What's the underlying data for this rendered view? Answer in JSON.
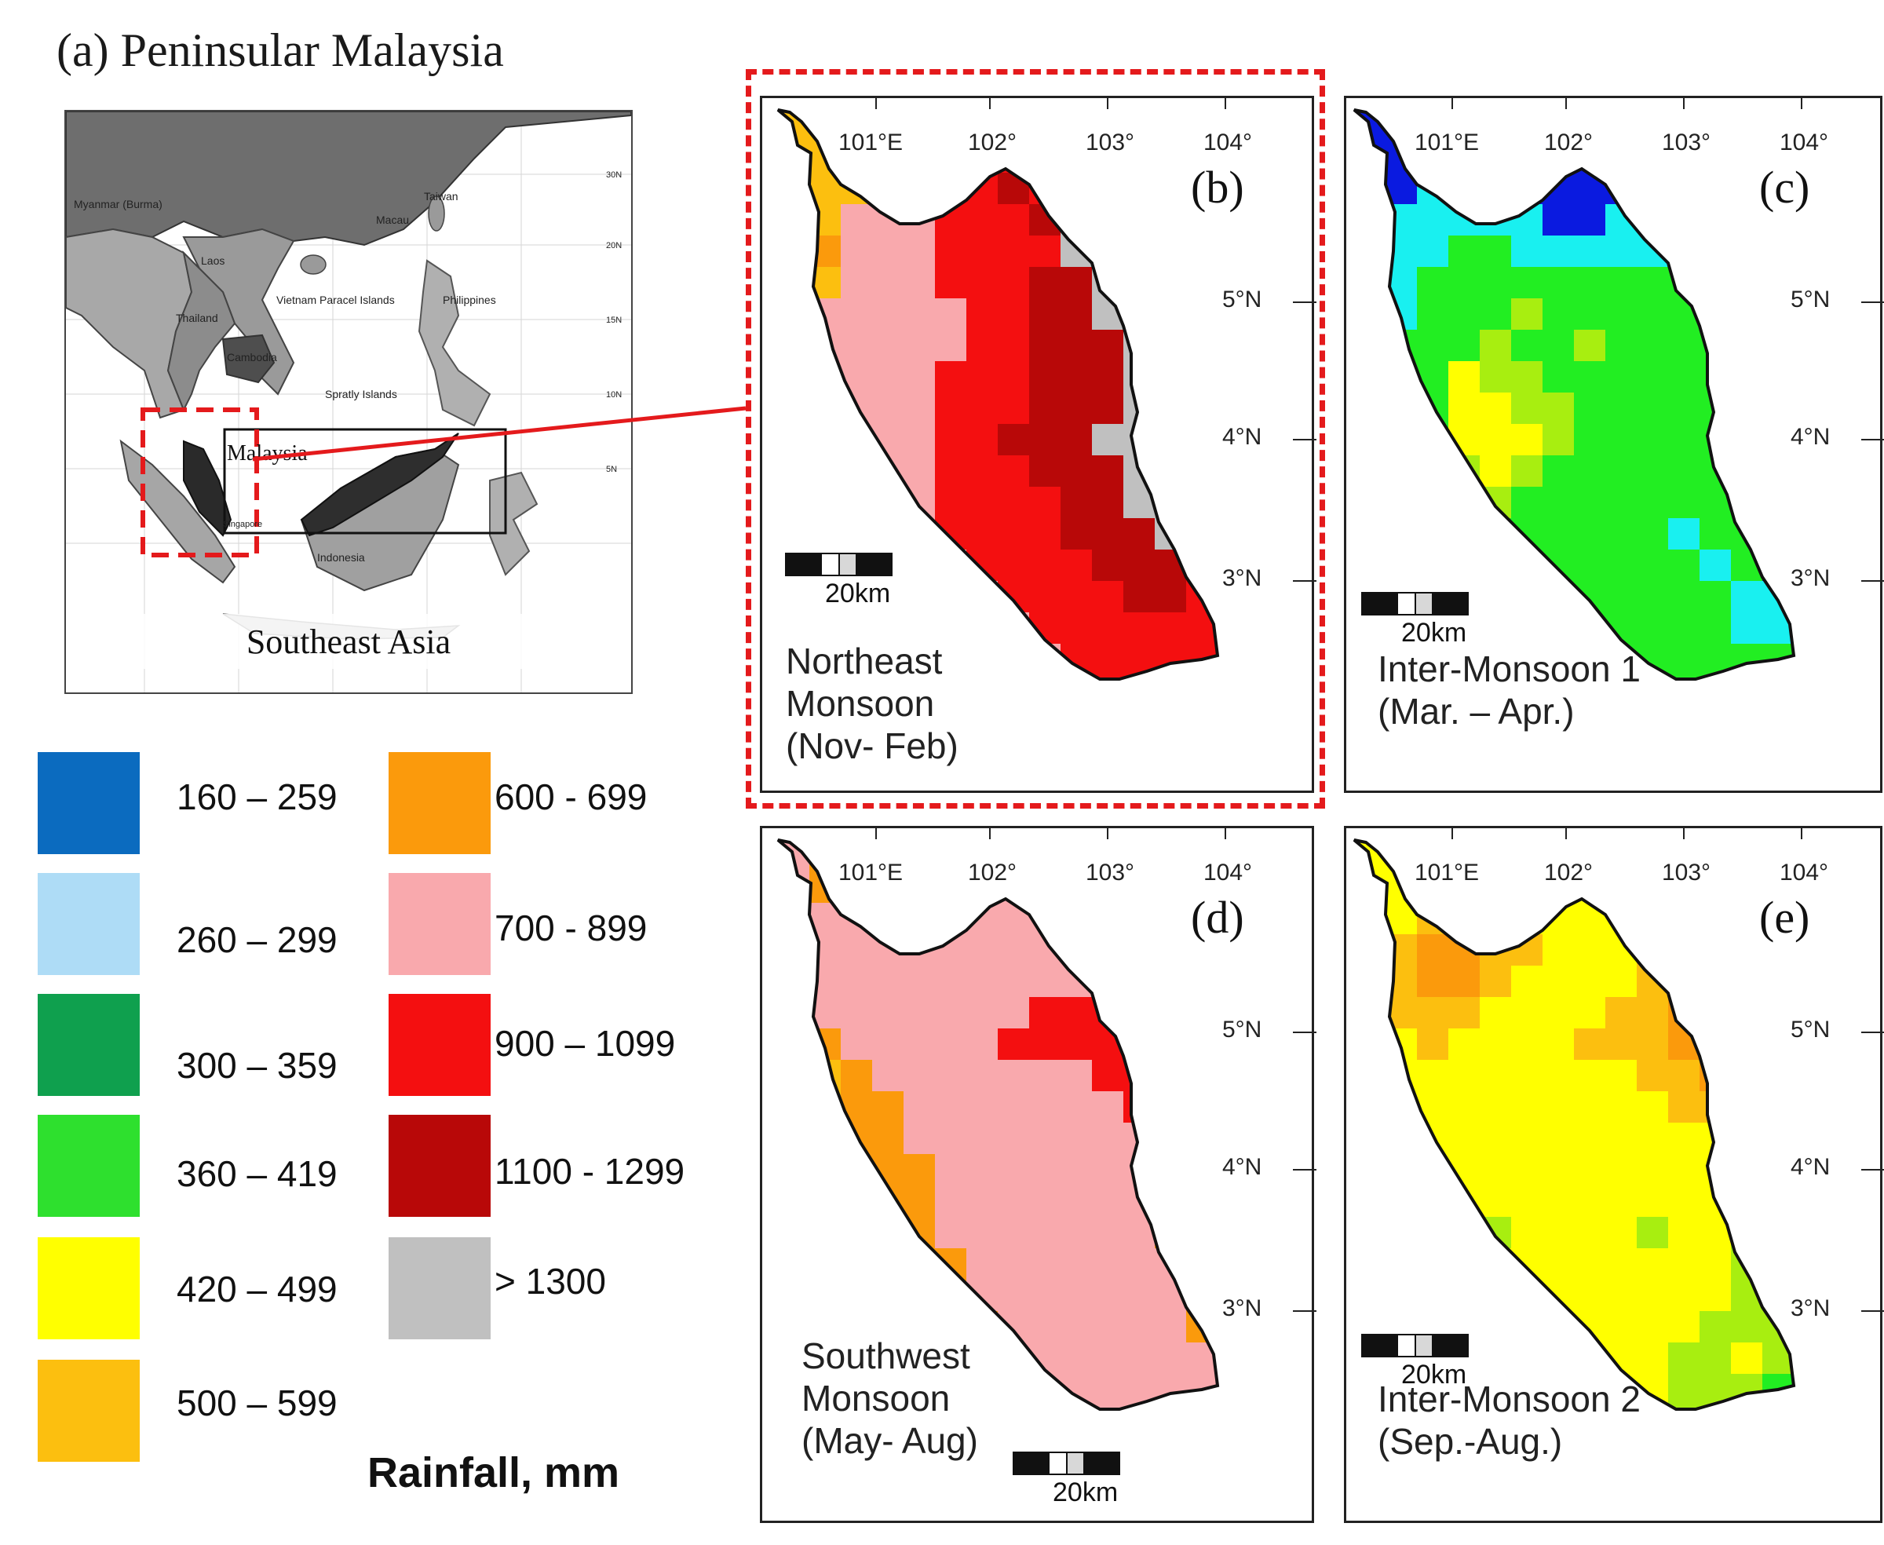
{
  "title": "(a) Peninsular Malaysia",
  "inset": {
    "region_label": "Southeast Asia",
    "country_label": "Malaysia",
    "place_labels": [
      "Myanmar (Burma)",
      "Laos",
      "Thailand",
      "Cambodia",
      "Vietnam Paracel Islands",
      "Philippines",
      "Spratly Islands",
      "Indonesia",
      "Taiwan",
      "Macau",
      "Singapore"
    ],
    "lat_ticks": [
      "30N",
      "20N",
      "15N",
      "10N",
      "5N"
    ]
  },
  "panels": [
    {
      "id": "b",
      "label": "(b)",
      "season": [
        "Northeast",
        "Monsoon",
        "(Nov- Feb)"
      ],
      "highlighted": true,
      "scale_label": "20km"
    },
    {
      "id": "c",
      "label": "(c)",
      "season": [
        "Inter-Monsoon 1",
        "(Mar. – Apr.)"
      ],
      "highlighted": false,
      "scale_label": "20km"
    },
    {
      "id": "d",
      "label": "(d)",
      "season": [
        "Southwest",
        "Monsoon",
        "(May- Aug)"
      ],
      "highlighted": false,
      "scale_label": "20km"
    },
    {
      "id": "e",
      "label": "(e)",
      "season": [
        "Inter-Monsoon 2",
        "(Sep.-Aug.)"
      ],
      "highlighted": false,
      "scale_label": "20km"
    }
  ],
  "axes": {
    "lon_ticks": [
      "101°E",
      "102°",
      "103°",
      "104°"
    ],
    "lat_ticks": [
      "5°N",
      "4°N",
      "3°N"
    ]
  },
  "legend": {
    "title": "Rainfall, mm",
    "classes": [
      {
        "label": "160 – 259",
        "color": "#0b6bbf"
      },
      {
        "label": "260 – 299",
        "color": "#aedcf6"
      },
      {
        "label": "300 – 359",
        "color": "#0fa04e"
      },
      {
        "label": "360 – 419",
        "color": "#2ee02e"
      },
      {
        "label": "420 – 499",
        "color": "#ffff00"
      },
      {
        "label": "500 – 599",
        "color": "#fcbf0f"
      },
      {
        "label": "600 - 699",
        "color": "#fb9a0c"
      },
      {
        "label": "700 - 899",
        "color": "#f9a9ad"
      },
      {
        "label": "900 – 1099",
        "color": "#f40f10"
      },
      {
        "label": "1100 - 1299",
        "color": "#b80808"
      },
      {
        "label": "> 1300",
        "color": "#c0c0c0"
      }
    ],
    "map_colors": {
      "deep_blue": "#0a1ae0",
      "cyan": "#19f0f0",
      "green": "#22ee22",
      "yellowgreen": "#a8ee10"
    }
  }
}
